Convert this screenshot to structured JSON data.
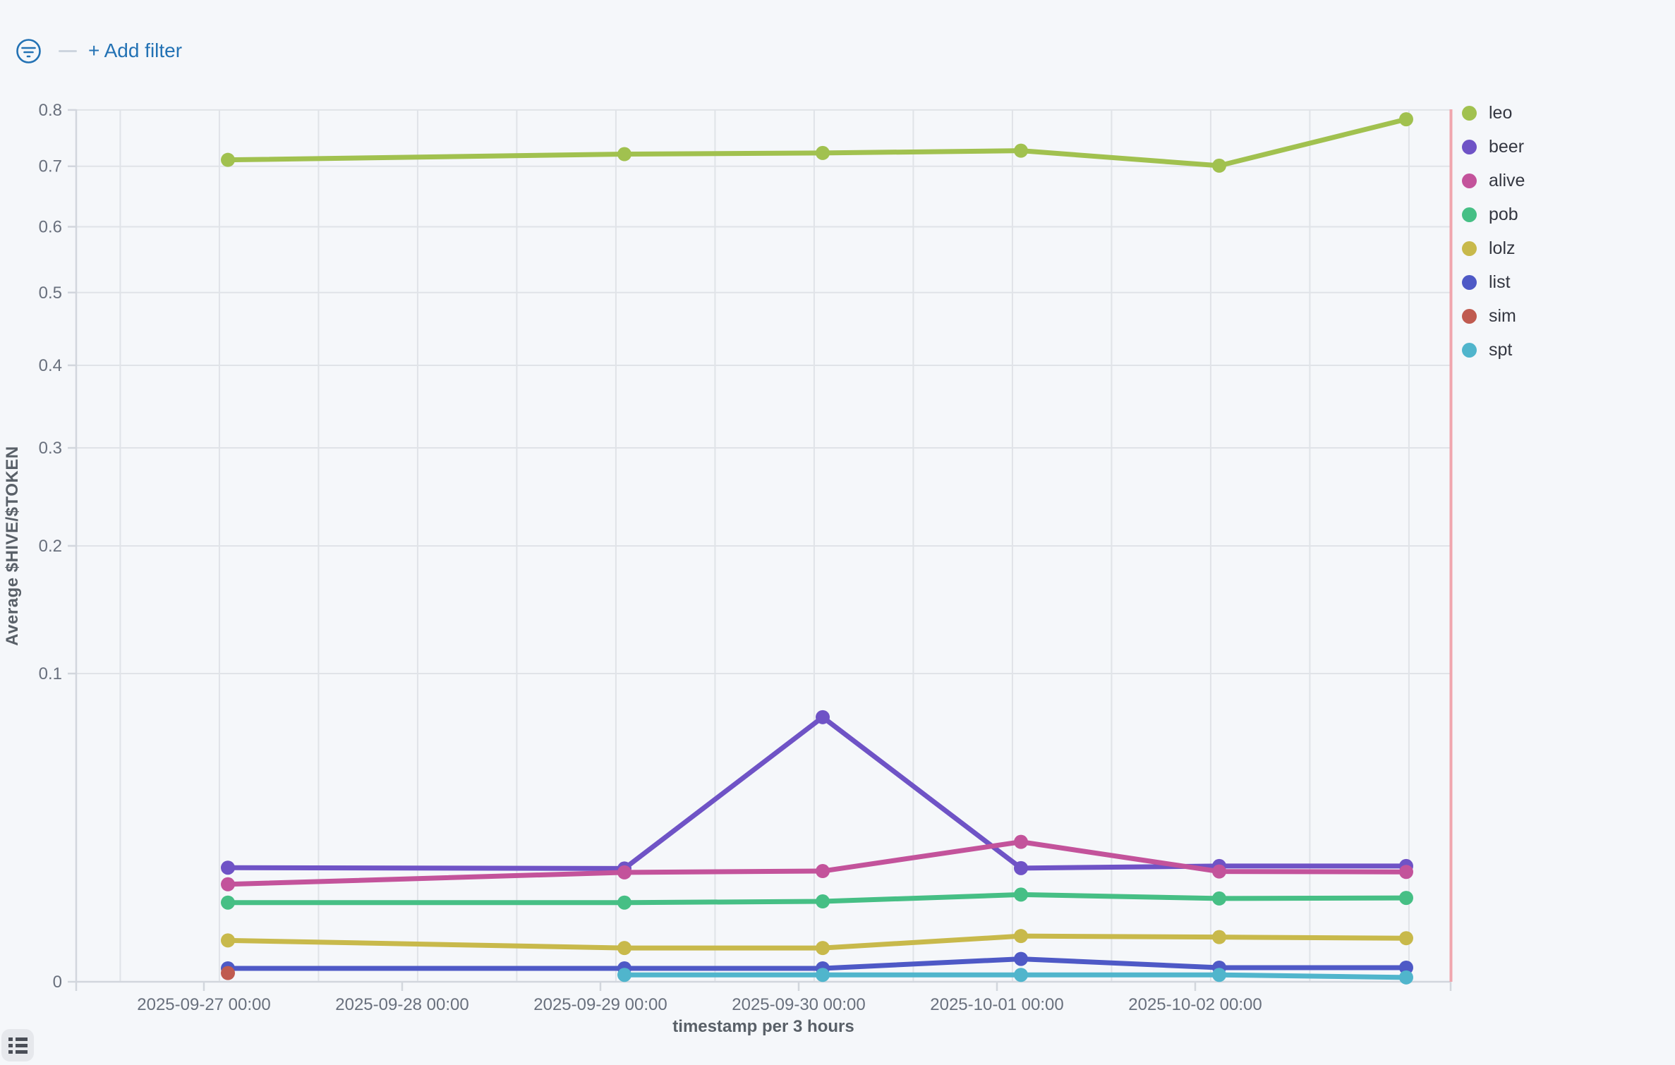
{
  "filter_bar": {
    "add_filter_label": "+ Add filter",
    "accent_color": "#2372b4"
  },
  "chart_data": {
    "type": "line",
    "title": "",
    "xlabel": "timestamp per 3 hours",
    "ylabel": "Average $HIVE/$TOKEN",
    "y_scale": "sqrt",
    "ylim": [
      0,
      0.8
    ],
    "grid": "on",
    "legend_position": "right",
    "y_ticks": [
      {
        "v": 0,
        "label": "0"
      },
      {
        "v": 0.1,
        "label": "0.1"
      },
      {
        "v": 0.2,
        "label": "0.2"
      },
      {
        "v": 0.3,
        "label": "0.3"
      },
      {
        "v": 0.4,
        "label": "0.4"
      },
      {
        "v": 0.5,
        "label": "0.5"
      },
      {
        "v": 0.6,
        "label": "0.6"
      },
      {
        "v": 0.7,
        "label": "0.7"
      },
      {
        "v": 0.8,
        "label": "0.8"
      }
    ],
    "x_ticks": [
      {
        "day": 0,
        "label": "2025-09-27 00:00"
      },
      {
        "day": 1,
        "label": "2025-09-28 00:00"
      },
      {
        "day": 2,
        "label": "2025-09-29 00:00"
      },
      {
        "day": 3,
        "label": "2025-09-30 00:00"
      },
      {
        "day": 4,
        "label": "2025-10-01 00:00"
      },
      {
        "day": 5,
        "label": "2025-10-02 00:00"
      }
    ],
    "x_domain_days": [
      -0.644,
      6.29
    ],
    "v_grid_phase_day": 0.078,
    "v_grid_step_day": 0.5,
    "end_marker_day": 6.29,
    "end_marker_color": "#f0a6ae",
    "series": [
      {
        "name": "leo",
        "color": "#a1c14f",
        "x_days": [
          0.121,
          2.121,
          3.121,
          4.121,
          5.121,
          6.064
        ],
        "values": [
          0.711,
          0.721,
          0.723,
          0.727,
          0.701,
          0.783
        ]
      },
      {
        "name": "beer",
        "color": "#6f53c6",
        "x_days": [
          0.121,
          2.121,
          3.121,
          4.121,
          5.121,
          6.064
        ],
        "values": [
          0.0137,
          0.0135,
          0.0737,
          0.0136,
          0.0141,
          0.0141
        ]
      },
      {
        "name": "alive",
        "color": "#c3539b",
        "x_days": [
          0.121,
          2.121,
          3.121,
          4.121,
          5.121,
          6.064
        ],
        "values": [
          0.01,
          0.0126,
          0.0129,
          0.0206,
          0.0128,
          0.0127
        ]
      },
      {
        "name": "pob",
        "color": "#46bf85",
        "x_days": [
          0.121,
          2.121,
          3.121,
          4.121,
          5.121,
          6.064
        ],
        "values": [
          0.0066,
          0.0066,
          0.0068,
          0.008,
          0.0073,
          0.0074
        ]
      },
      {
        "name": "lolz",
        "color": "#c8b94b",
        "x_days": [
          0.121,
          2.121,
          3.121,
          4.121,
          5.121,
          6.064
        ],
        "values": [
          0.0018,
          0.0012,
          0.0012,
          0.0022,
          0.0021,
          0.002
        ]
      },
      {
        "name": "list",
        "color": "#4e59c6",
        "x_days": [
          0.121,
          2.121,
          3.121,
          4.121,
          5.121,
          6.064
        ],
        "values": [
          0.00019,
          0.00019,
          0.00019,
          0.00055,
          0.00021,
          0.00021
        ]
      },
      {
        "name": "sim",
        "color": "#c05b50",
        "x_days": [
          0.121
        ],
        "values": [
          8e-05
        ]
      },
      {
        "name": "spt",
        "color": "#50b5cc",
        "x_days": [
          2.121,
          3.121,
          4.121,
          5.121,
          6.064
        ],
        "values": [
          5e-05,
          5e-05,
          5e-05,
          5e-05,
          2e-05
        ]
      }
    ],
    "legend_labels": [
      "leo",
      "beer",
      "alive",
      "pob",
      "lolz",
      "list",
      "sim",
      "spt"
    ]
  }
}
